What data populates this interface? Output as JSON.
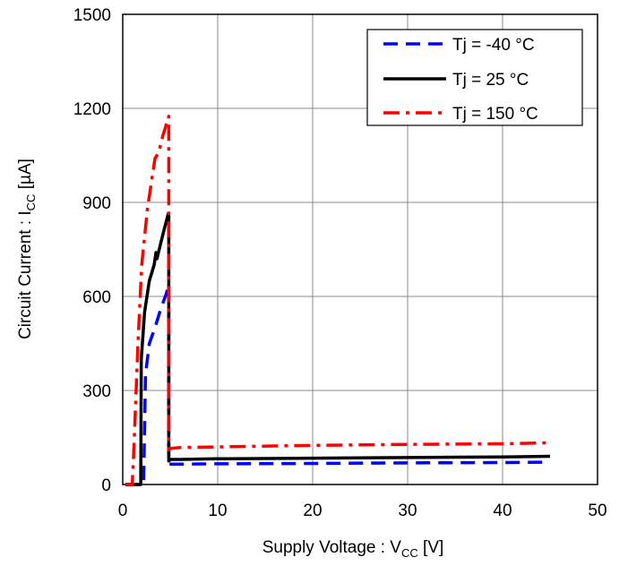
{
  "chart_data": {
    "type": "line",
    "xlabel": {
      "main": "Supply Voltage : V",
      "sub": "CC",
      "unit": " [V]"
    },
    "ylabel": {
      "main": "Circuit Current : I",
      "sub": "CC",
      "unit": " [µA]"
    },
    "xlim": [
      0,
      50
    ],
    "ylim": [
      0,
      1500
    ],
    "xticks": [
      0,
      10,
      20,
      30,
      40,
      50
    ],
    "yticks": [
      0,
      300,
      600,
      900,
      1200,
      1500
    ],
    "grid": true,
    "legend_position": "top-right",
    "series": [
      {
        "name": "Tj = -40 °C",
        "color": "#0000ff",
        "style": "dashed",
        "x": [
          0.3,
          2.2,
          2.4,
          2.8,
          3.4,
          4.0,
          4.6,
          4.85,
          4.85,
          5.0,
          6,
          10,
          20,
          30,
          40,
          45
        ],
        "y": [
          0,
          0,
          350,
          450,
          500,
          560,
          610,
          640,
          65,
          65,
          65,
          66,
          67,
          69,
          70,
          71
        ]
      },
      {
        "name": "Tj = 25 °C",
        "color": "#000000",
        "style": "solid",
        "x": [
          0.3,
          1.9,
          1.95,
          2.3,
          2.8,
          3.3,
          3.5,
          3.6,
          4.0,
          4.5,
          4.8,
          4.85,
          4.85,
          5.0,
          6,
          10,
          20,
          30,
          40,
          45
        ],
        "y": [
          0,
          0,
          400,
          550,
          650,
          700,
          740,
          720,
          770,
          830,
          865,
          860,
          75,
          80,
          80,
          82,
          84,
          86,
          88,
          90
        ]
      },
      {
        "name": "Tj = 150 °C",
        "color": "#ff0000",
        "style": "dashdot",
        "x": [
          0.3,
          1.0,
          1.2,
          1.6,
          2.0,
          2.6,
          3.0,
          3.4,
          3.8,
          4.2,
          4.6,
          4.85,
          4.85,
          5.0,
          6,
          10,
          20,
          30,
          40,
          45
        ],
        "y": [
          0,
          0,
          130,
          450,
          700,
          880,
          960,
          1040,
          1060,
          1110,
          1150,
          1175,
          110,
          115,
          118,
          120,
          125,
          128,
          130,
          133
        ]
      }
    ]
  }
}
